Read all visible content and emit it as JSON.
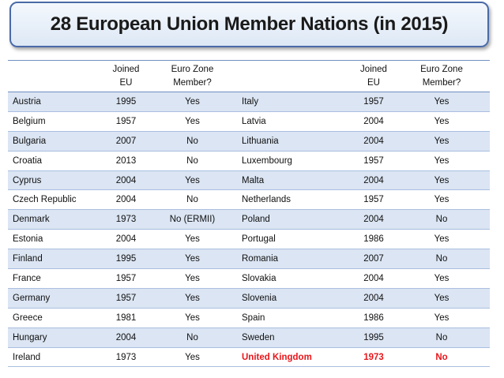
{
  "title": "28 European Union Member Nations (in 2015)",
  "headers": {
    "joined_line1": "Joined",
    "joined_line2": "EU",
    "euro_line1": "Euro Zone",
    "euro_line2": "Member?"
  },
  "rows": [
    {
      "c1": "Austria",
      "y1": "1995",
      "e1": "Yes",
      "c2": "Italy",
      "y2": "1957",
      "e2": "Yes"
    },
    {
      "c1": "Belgium",
      "y1": "1957",
      "e1": "Yes",
      "c2": "Latvia",
      "y2": "2004",
      "e2": "Yes"
    },
    {
      "c1": "Bulgaria",
      "y1": "2007",
      "e1": "No",
      "c2": "Lithuania",
      "y2": "2004",
      "e2": "Yes"
    },
    {
      "c1": "Croatia",
      "y1": "2013",
      "e1": "No",
      "c2": "Luxembourg",
      "y2": "1957",
      "e2": "Yes"
    },
    {
      "c1": "Cyprus",
      "y1": "2004",
      "e1": "Yes",
      "c2": "Malta",
      "y2": "2004",
      "e2": "Yes"
    },
    {
      "c1": "Czech Republic",
      "y1": "2004",
      "e1": "No",
      "c2": "Netherlands",
      "y2": "1957",
      "e2": "Yes"
    },
    {
      "c1": "Denmark",
      "y1": "1973",
      "e1": "No (ERMII)",
      "c2": "Poland",
      "y2": "2004",
      "e2": "No"
    },
    {
      "c1": "Estonia",
      "y1": "2004",
      "e1": "Yes",
      "c2": "Portugal",
      "y2": "1986",
      "e2": "Yes"
    },
    {
      "c1": "Finland",
      "y1": "1995",
      "e1": "Yes",
      "c2": "Romania",
      "y2": "2007",
      "e2": "No"
    },
    {
      "c1": "France",
      "y1": "1957",
      "e1": "Yes",
      "c2": "Slovakia",
      "y2": "2004",
      "e2": "Yes"
    },
    {
      "c1": "Germany",
      "y1": "1957",
      "e1": "Yes",
      "c2": "Slovenia",
      "y2": "2004",
      "e2": "Yes"
    },
    {
      "c1": "Greece",
      "y1": "1981",
      "e1": "Yes",
      "c2": "Spain",
      "y2": "1986",
      "e2": "Yes"
    },
    {
      "c1": "Hungary",
      "y1": "2004",
      "e1": "No",
      "c2": "Sweden",
      "y2": "1995",
      "e2": "No"
    },
    {
      "c1": "Ireland",
      "y1": "1973",
      "e1": "Yes",
      "c2": "United Kingdom",
      "y2": "1973",
      "e2": "No",
      "highlight_right": true
    }
  ],
  "colors": {
    "title_border": "#4a6aa8",
    "row_band": "#dbe5f3",
    "highlight_text": "#e8161b"
  }
}
